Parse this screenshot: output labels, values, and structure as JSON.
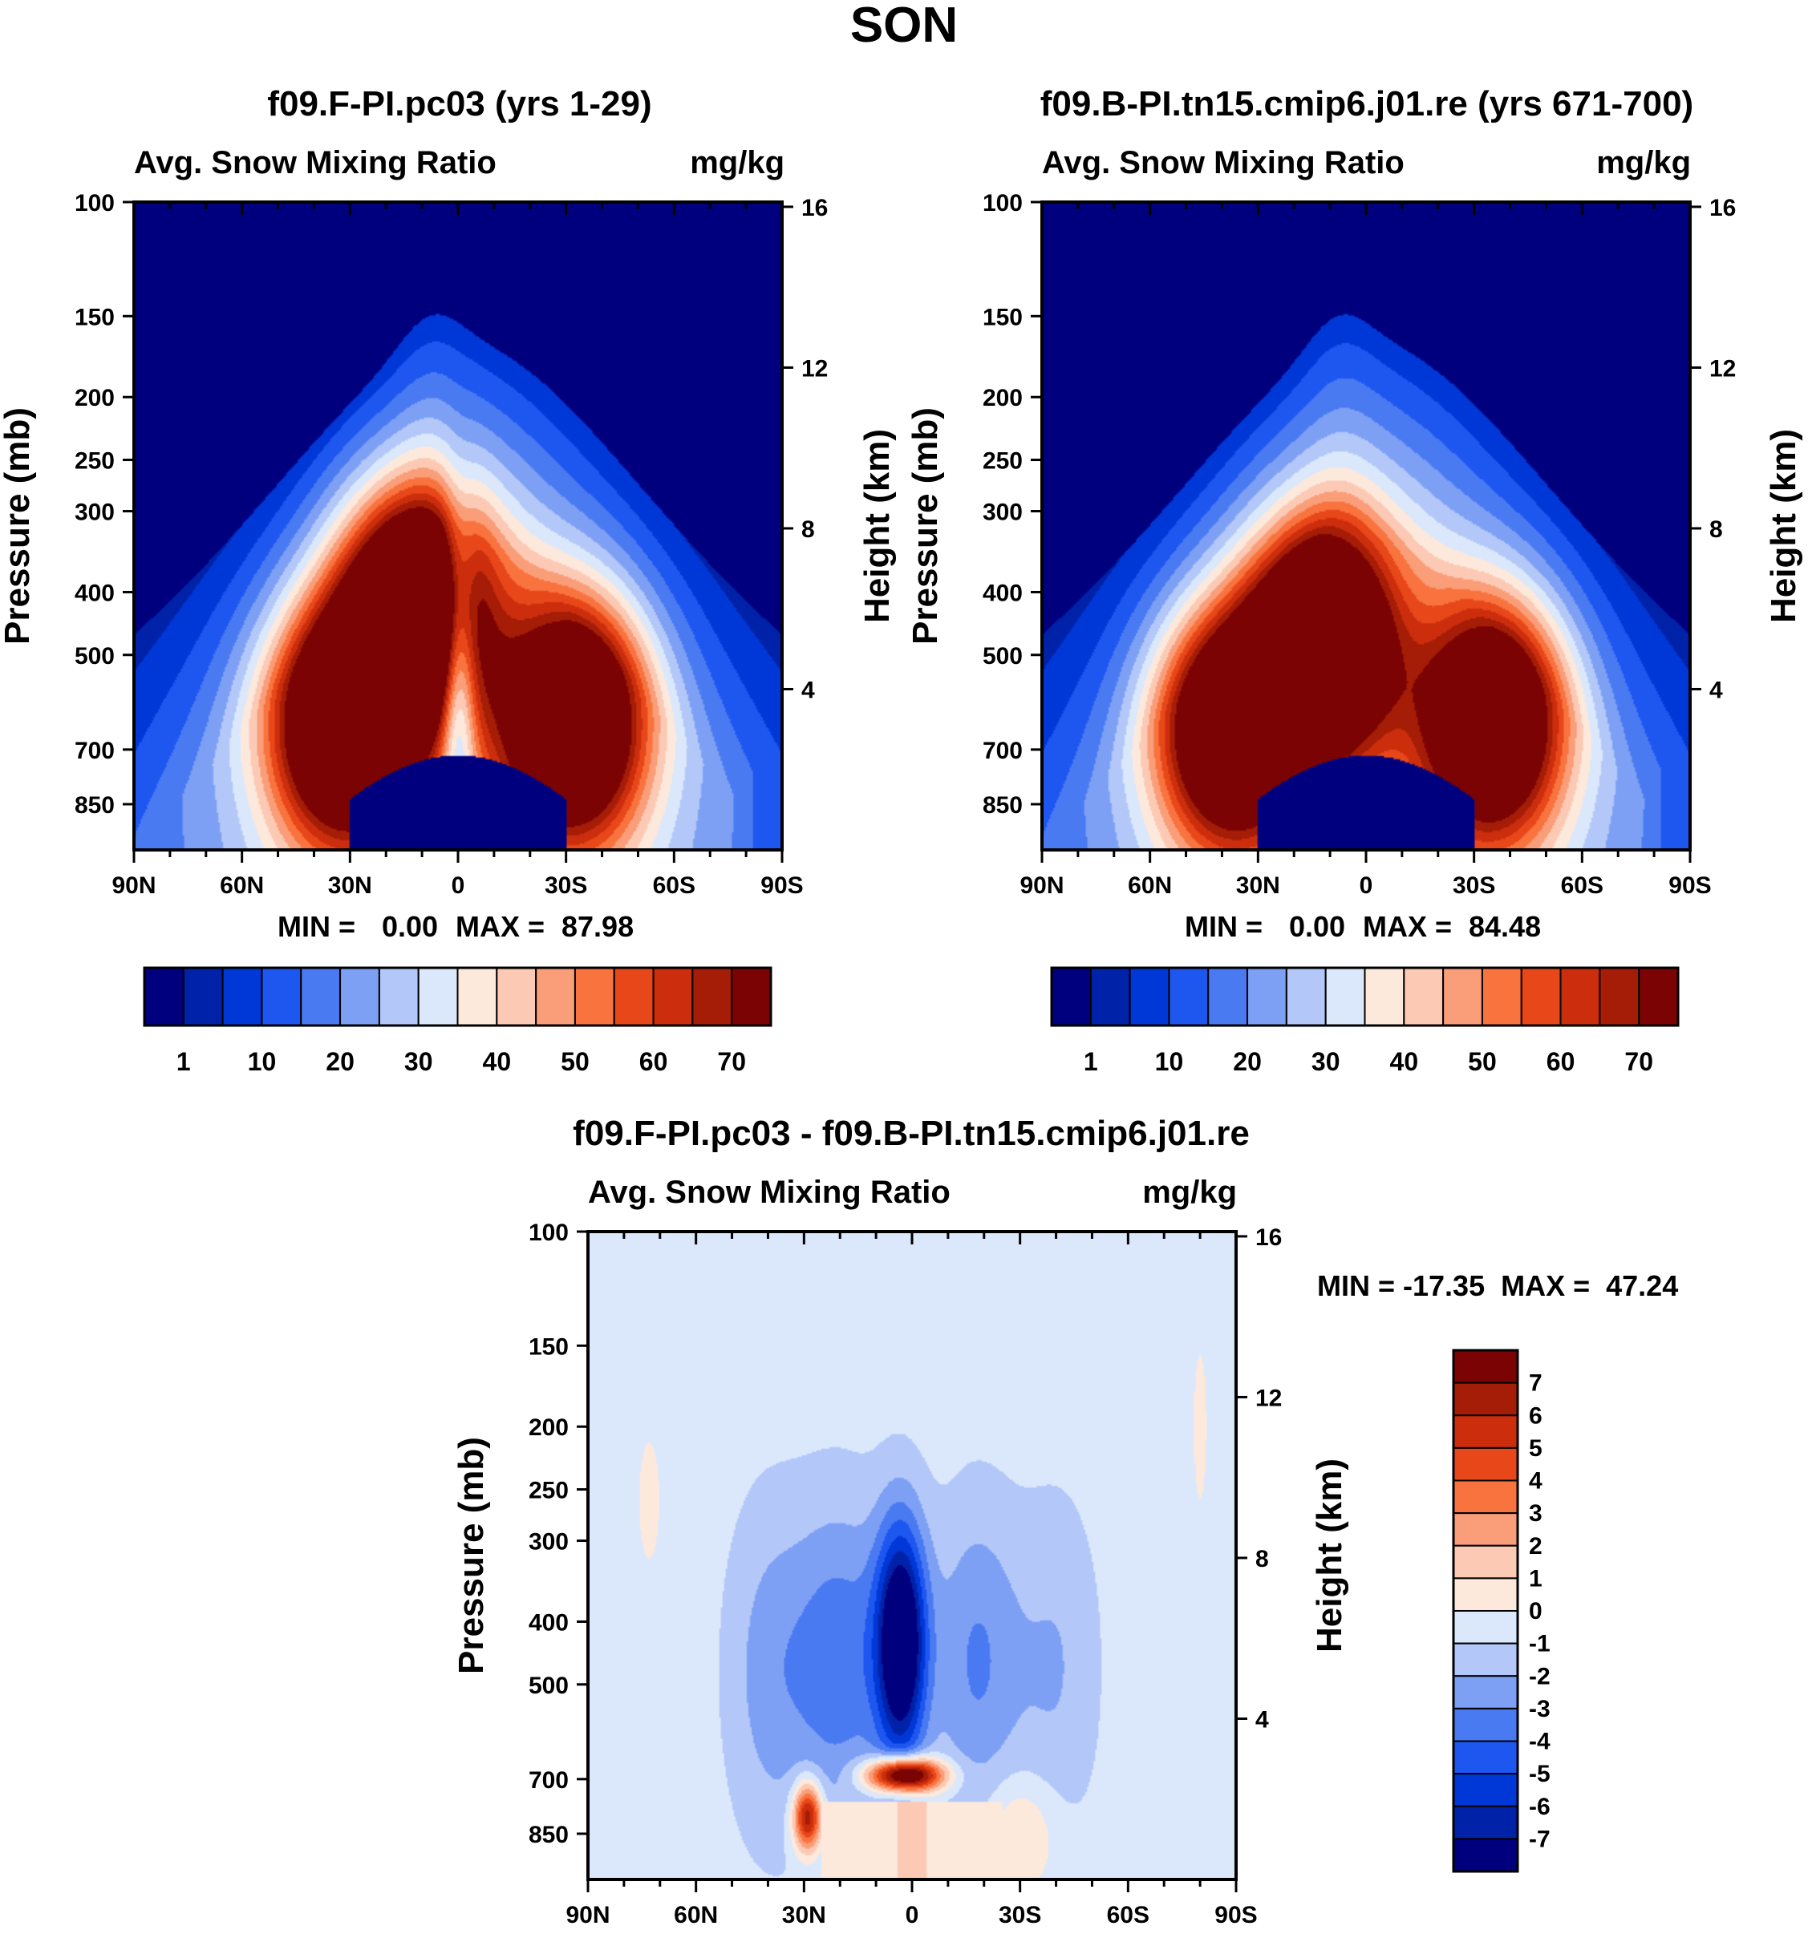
{
  "page_title": "SON",
  "colors": {
    "abs_levels": [
      "#00007f",
      "#0022a8",
      "#0038d8",
      "#1e56f0",
      "#4a7af2",
      "#7da0f5",
      "#b3c8f8",
      "#dbe8fb",
      "#fde9dc",
      "#fccab4",
      "#fa9d79",
      "#f8733e",
      "#e8471a",
      "#cc2e0d",
      "#a51d06",
      "#7c0303"
    ],
    "diff_levels": [
      "#00007f",
      "#0022a8",
      "#0038d8",
      "#1e56f0",
      "#4a7af2",
      "#7da0f5",
      "#b3c8f8",
      "#dbe8fb",
      "#fde9dc",
      "#fccab4",
      "#fa9d79",
      "#f8733e",
      "#e8471a",
      "#cc2e0d",
      "#a51d06",
      "#7c0303"
    ]
  },
  "chart_data": [
    {
      "type": "heatmap",
      "title": "f09.F-PI.pc03 (yrs 1-29)",
      "left_label": "Avg. Snow Mixing Ratio",
      "right_label": "mg/kg",
      "ylabel": "Pressure (mb)",
      "y2label": "Height (km)",
      "yticks": [
        "100",
        "150",
        "200",
        "250",
        "300",
        "400",
        "500",
        "700",
        "850"
      ],
      "ytick_values": [
        100,
        150,
        200,
        250,
        300,
        400,
        500,
        700,
        850
      ],
      "y2ticks": [
        "16",
        "12",
        "8",
        "4"
      ],
      "y2tick_values": [
        16,
        12,
        8,
        4
      ],
      "xticks": [
        "90N",
        "60N",
        "30N",
        "0",
        "30S",
        "60S",
        "90S"
      ],
      "xtick_values": [
        90,
        60,
        30,
        0,
        -30,
        -60,
        -90
      ],
      "ylim": [
        100,
        1000
      ],
      "xlim": [
        90,
        -90
      ],
      "stats": {
        "min_label": "MIN =",
        "min": "0.00",
        "max_label": "MAX =",
        "max": "87.98"
      },
      "colorbar_labels": [
        "1",
        "10",
        "20",
        "30",
        "40",
        "50",
        "60",
        "70"
      ],
      "peaks": [
        [
          32,
          650,
          80
        ],
        [
          -32,
          640,
          82
        ],
        [
          12,
          430,
          86
        ]
      ],
      "dip": {
        "lat": 0,
        "depth": 40
      }
    },
    {
      "type": "heatmap",
      "title": "f09.B-PI.tn15.cmip6.j01.re (yrs 671-700)",
      "left_label": "Avg. Snow Mixing Ratio",
      "right_label": "mg/kg",
      "ylabel": "Pressure (mb)",
      "y2label": "Height (km)",
      "yticks": [
        "100",
        "150",
        "200",
        "250",
        "300",
        "400",
        "500",
        "700",
        "850"
      ],
      "ytick_values": [
        100,
        150,
        200,
        250,
        300,
        400,
        500,
        700,
        850
      ],
      "y2ticks": [
        "16",
        "12",
        "8",
        "4"
      ],
      "y2tick_values": [
        16,
        12,
        8,
        4
      ],
      "xticks": [
        "90N",
        "60N",
        "30N",
        "0",
        "30S",
        "60S",
        "90S"
      ],
      "xtick_values": [
        90,
        60,
        30,
        0,
        -30,
        -60,
        -90
      ],
      "ylim": [
        100,
        1000
      ],
      "xlim": [
        90,
        -90
      ],
      "stats": {
        "min_label": "MIN =",
        "min": "0.00",
        "max_label": "MAX =",
        "max": "84.48"
      },
      "colorbar_labels": [
        "1",
        "10",
        "20",
        "30",
        "40",
        "50",
        "60",
        "70"
      ],
      "peaks": [
        [
          38,
          660,
          76
        ],
        [
          -35,
          640,
          78
        ],
        [
          12,
          480,
          84
        ]
      ],
      "dip": {
        "lat": 0,
        "depth": 0
      }
    },
    {
      "type": "heatmap",
      "title": "f09.F-PI.pc03 - f09.B-PI.tn15.cmip6.j01.re",
      "left_label": "Avg. Snow Mixing Ratio",
      "right_label": "mg/kg",
      "ylabel": "Pressure (mb)",
      "y2label": "Height (km)",
      "yticks": [
        "100",
        "150",
        "200",
        "250",
        "300",
        "400",
        "500",
        "700",
        "850"
      ],
      "ytick_values": [
        100,
        150,
        200,
        250,
        300,
        400,
        500,
        700,
        850
      ],
      "y2ticks": [
        "16",
        "12",
        "8",
        "4"
      ],
      "y2tick_values": [
        16,
        12,
        8,
        4
      ],
      "xticks": [
        "90N",
        "60N",
        "30N",
        "0",
        "30S",
        "60S",
        "90S"
      ],
      "xtick_values": [
        90,
        60,
        30,
        0,
        -30,
        -60,
        -90
      ],
      "ylim": [
        100,
        1000
      ],
      "xlim": [
        90,
        -90
      ],
      "stats": {
        "text": "MIN = -17.35  MAX =  47.24",
        "min": "-17.35",
        "max": "47.24"
      },
      "colorbar_labels": [
        "7",
        "6",
        "5",
        "4",
        "3",
        "2",
        "1",
        "0",
        "-1",
        "-2",
        "-3",
        "-4",
        "-5",
        "-6",
        "-7"
      ]
    }
  ]
}
